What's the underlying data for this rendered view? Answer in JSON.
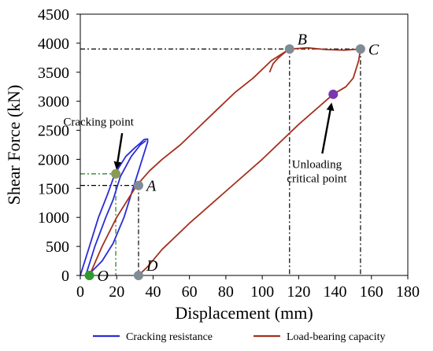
{
  "chart_data": {
    "type": "line",
    "title": "",
    "xlabel": "Displacement (mm)",
    "ylabel": "Shear Force (kN)",
    "xlim": [
      0,
      180
    ],
    "ylim": [
      0,
      4500
    ],
    "xticks": [
      0,
      20,
      40,
      60,
      80,
      100,
      120,
      140,
      160,
      180
    ],
    "yticks": [
      0,
      500,
      1000,
      1500,
      2000,
      2500,
      3000,
      3500,
      4000,
      4500
    ],
    "grid": false,
    "legend_position": "bottom",
    "colors": {
      "cracking": "#2b2bd9",
      "load": "#a4301e",
      "marker": "#7f8c96",
      "origin_marker": "#2e9a2e",
      "crack_marker": "#8a9a55",
      "unload_marker": "#7a35b0",
      "guide_green": "#1f7a1f"
    },
    "series": [
      {
        "name": "Cracking resistance",
        "color_key": "cracking",
        "points": [
          [
            0,
            0
          ],
          [
            5,
            500
          ],
          [
            10,
            1000
          ],
          [
            15,
            1400
          ],
          [
            19,
            1750
          ],
          [
            25,
            2050
          ],
          [
            30,
            2200
          ],
          [
            33,
            2280
          ],
          [
            35,
            2340
          ],
          [
            37,
            2350
          ],
          [
            37,
            2300
          ],
          [
            35,
            2100
          ],
          [
            32,
            1800
          ],
          [
            28,
            1400
          ],
          [
            24,
            1000
          ],
          [
            18,
            550
          ],
          [
            12,
            250
          ],
          [
            6,
            60
          ],
          [
            3,
            0
          ],
          [
            8,
            500
          ],
          [
            14,
            1000
          ],
          [
            18,
            1300
          ],
          [
            22,
            1700
          ],
          [
            28,
            2050
          ],
          [
            33,
            2250
          ],
          [
            36,
            2320
          ]
        ]
      },
      {
        "name": "Load-bearing capacity",
        "color_key": "load",
        "points": [
          [
            5,
            0
          ],
          [
            12,
            500
          ],
          [
            20,
            1000
          ],
          [
            27,
            1350
          ],
          [
            31,
            1550
          ],
          [
            38,
            1800
          ],
          [
            45,
            2000
          ],
          [
            55,
            2250
          ],
          [
            65,
            2550
          ],
          [
            75,
            2850
          ],
          [
            85,
            3150
          ],
          [
            95,
            3400
          ],
          [
            105,
            3700
          ],
          [
            115,
            3900
          ],
          [
            125,
            3920
          ],
          [
            135,
            3890
          ],
          [
            145,
            3880
          ],
          [
            154,
            3900
          ],
          [
            153,
            3700
          ],
          [
            150,
            3400
          ],
          [
            146,
            3250
          ],
          [
            139,
            3120
          ],
          [
            120,
            2600
          ],
          [
            100,
            2000
          ],
          [
            80,
            1450
          ],
          [
            60,
            900
          ],
          [
            45,
            450
          ],
          [
            37,
            150
          ],
          [
            32,
            0
          ]
        ]
      },
      {
        "name": "",
        "color_key": "load",
        "points": [
          [
            104,
            3500
          ],
          [
            106,
            3650
          ],
          [
            109,
            3750
          ],
          [
            112,
            3830
          ],
          [
            115,
            3900
          ]
        ]
      }
    ],
    "points": [
      {
        "label": "O",
        "x": 5,
        "y": 0,
        "color_key": "origin_marker",
        "label_side": "right"
      },
      {
        "label": "A",
        "x": 32,
        "y": 1550,
        "color_key": "marker",
        "label_side": "right"
      },
      {
        "label": "B",
        "x": 115,
        "y": 3900,
        "color_key": "marker",
        "label_side": "upper-right"
      },
      {
        "label": "C",
        "x": 154,
        "y": 3900,
        "color_key": "marker",
        "label_side": "right"
      },
      {
        "label": "D",
        "x": 32,
        "y": 0,
        "color_key": "marker",
        "label_side": "upper-right"
      },
      {
        "label": "",
        "x": 19.5,
        "y": 1750,
        "color_key": "crack_marker",
        "label_side": "none"
      },
      {
        "label": "",
        "x": 139,
        "y": 3120,
        "color_key": "unload_marker",
        "label_side": "none"
      }
    ],
    "guide_lines": [
      {
        "from": [
          0,
          1750
        ],
        "to": [
          19.5,
          1750
        ],
        "color_key": "guide_green"
      },
      {
        "from": [
          19.5,
          1750
        ],
        "to": [
          19.5,
          0
        ],
        "color_key": "guide_green"
      },
      {
        "from": [
          0,
          1550
        ],
        "to": [
          32,
          1550
        ],
        "color_key": "black"
      },
      {
        "from": [
          32,
          1550
        ],
        "to": [
          32,
          0
        ],
        "color_key": "black"
      },
      {
        "from": [
          0,
          3900
        ],
        "to": [
          154,
          3900
        ],
        "color_key": "black"
      },
      {
        "from": [
          115,
          3900
        ],
        "to": [
          115,
          0
        ],
        "color_key": "black"
      },
      {
        "from": [
          154,
          3900
        ],
        "to": [
          154,
          0
        ],
        "color_key": "black"
      }
    ],
    "annotations": [
      {
        "text": "Cracking point",
        "lines": [
          "Cracking point"
        ],
        "text_anchor_at": [
          10,
          2580
        ],
        "arrow_from": [
          23,
          2450
        ],
        "arrow_to": [
          20,
          1850
        ]
      },
      {
        "text": "Unloading critical point",
        "lines": [
          "Unloading",
          "critical point"
        ],
        "text_anchor_at": [
          130,
          1850
        ],
        "arrow_from": [
          133,
          2100
        ],
        "arrow_to": [
          138,
          2950
        ]
      }
    ],
    "legend": [
      {
        "label": "Cracking resistance",
        "color_key": "cracking"
      },
      {
        "label": "Load-bearing capacity",
        "color_key": "load"
      }
    ]
  }
}
